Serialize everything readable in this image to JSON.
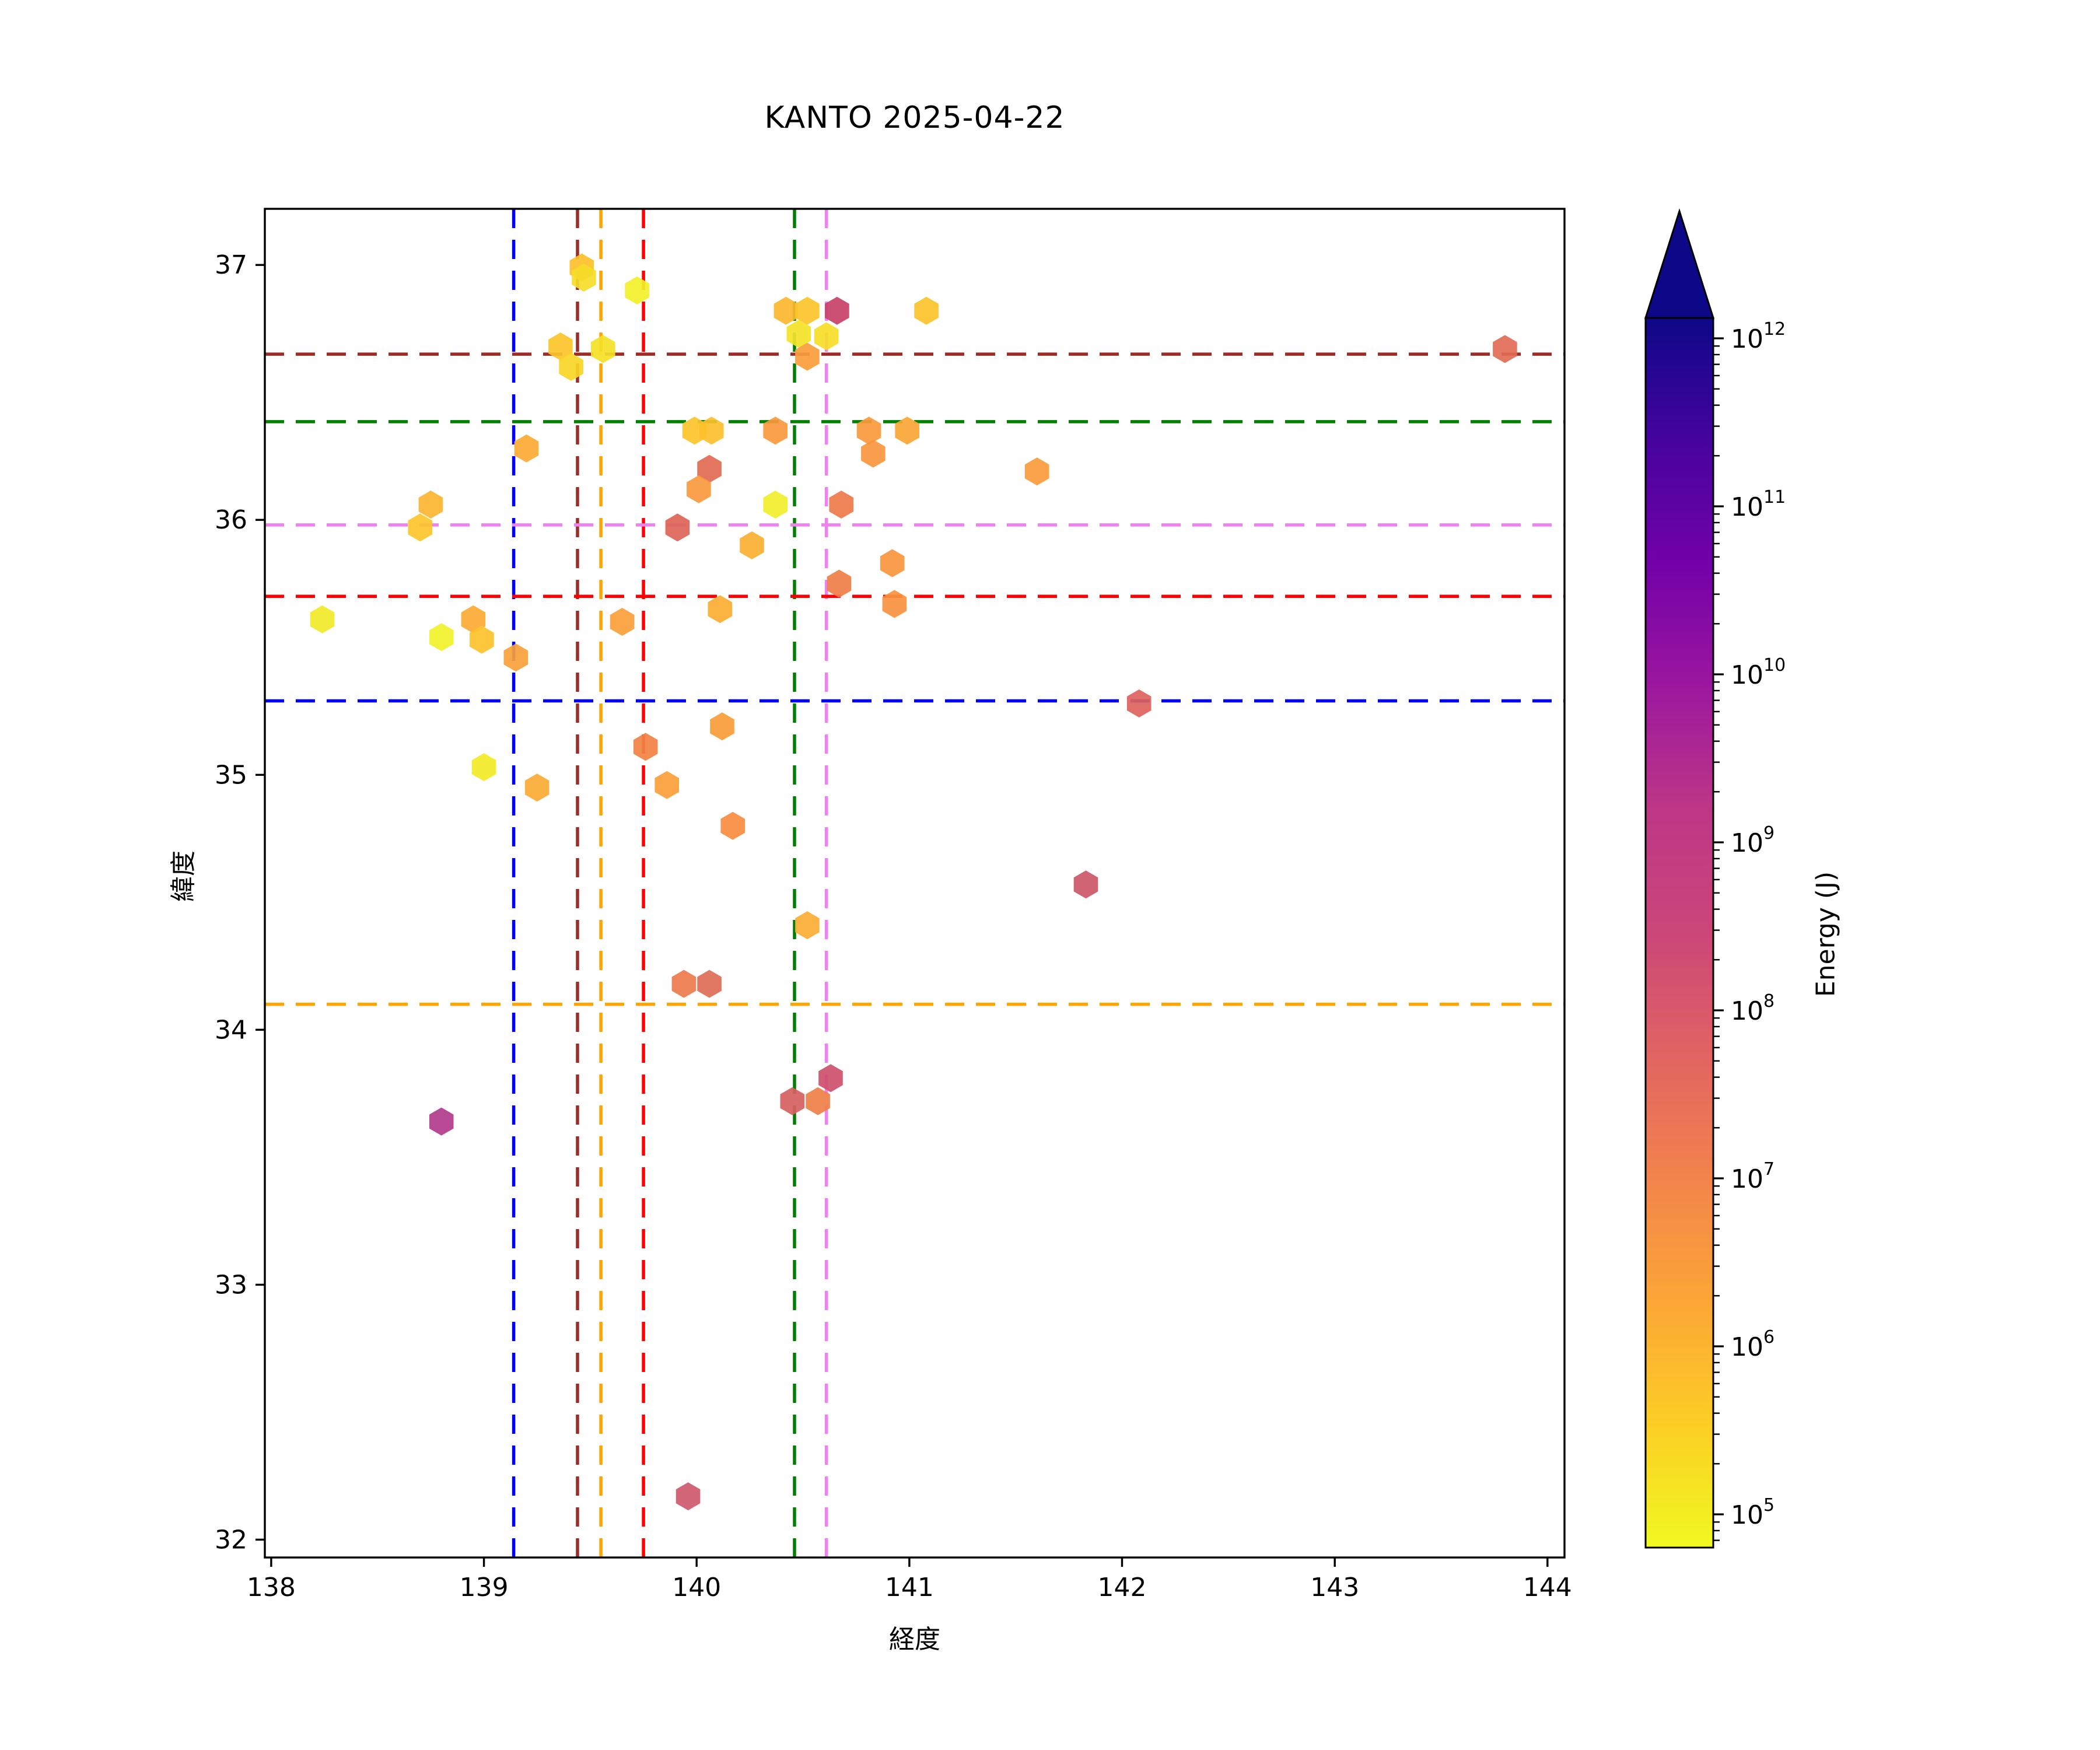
{
  "chart_data": {
    "type": "scatter",
    "title": "KANTO 2025-04-22",
    "xlabel": "経度",
    "ylabel": "緯度",
    "marker": "hexagon",
    "grid": false,
    "axes": {
      "xlim": [
        137.97,
        144.08
      ],
      "ylim": [
        31.93,
        37.22
      ],
      "xticks": [
        138,
        139,
        140,
        141,
        142,
        143,
        144
      ],
      "yticks": [
        32,
        33,
        34,
        35,
        36,
        37
      ]
    },
    "points": [
      {
        "lon": 139.46,
        "lat": 36.99,
        "energy_j": 1100000.0,
        "color": "#fcc02b"
      },
      {
        "lon": 139.47,
        "lat": 36.95,
        "energy_j": 250000.0,
        "color": "#f5dd28"
      },
      {
        "lon": 139.72,
        "lat": 36.9,
        "energy_j": 100000.0,
        "color": "#f2f028"
      },
      {
        "lon": 139.36,
        "lat": 36.68,
        "energy_j": 900000.0,
        "color": "#fcc42a"
      },
      {
        "lon": 139.41,
        "lat": 36.6,
        "energy_j": 300000.0,
        "color": "#f8d626"
      },
      {
        "lon": 139.56,
        "lat": 36.67,
        "energy_j": 200000.0,
        "color": "#f4e127"
      },
      {
        "lon": 140.42,
        "lat": 36.82,
        "energy_j": 1800000.0,
        "color": "#fcb62e"
      },
      {
        "lon": 140.52,
        "lat": 36.82,
        "energy_j": 1000000.0,
        "color": "#fcc32b"
      },
      {
        "lon": 140.48,
        "lat": 36.73,
        "energy_j": 180000.0,
        "color": "#f3e327"
      },
      {
        "lon": 140.61,
        "lat": 36.72,
        "energy_j": 220000.0,
        "color": "#f6dd27"
      },
      {
        "lon": 140.66,
        "lat": 36.82,
        "energy_j": 900000000.0,
        "color": "#c84168"
      },
      {
        "lon": 140.52,
        "lat": 36.64,
        "energy_j": 8000000.0,
        "color": "#fa9d3b"
      },
      {
        "lon": 141.08,
        "lat": 36.82,
        "energy_j": 1000000.0,
        "color": "#fcc32a"
      },
      {
        "lon": 143.8,
        "lat": 36.67,
        "energy_j": 110000000.0,
        "color": "#e26d55"
      },
      {
        "lon": 139.99,
        "lat": 36.35,
        "energy_j": 900000.0,
        "color": "#fcc42b"
      },
      {
        "lon": 140.07,
        "lat": 36.35,
        "energy_j": 1200000.0,
        "color": "#fcc02c"
      },
      {
        "lon": 140.37,
        "lat": 36.35,
        "energy_j": 9000000.0,
        "color": "#f9993d"
      },
      {
        "lon": 140.81,
        "lat": 36.35,
        "energy_j": 8000000.0,
        "color": "#fa9a3c"
      },
      {
        "lon": 140.83,
        "lat": 36.26,
        "energy_j": 11000000.0,
        "color": "#f9963d"
      },
      {
        "lon": 140.99,
        "lat": 36.35,
        "energy_j": 4000000.0,
        "color": "#fba635"
      },
      {
        "lon": 139.2,
        "lat": 36.28,
        "energy_j": 3500000.0,
        "color": "#fbaa33"
      },
      {
        "lon": 140.06,
        "lat": 36.2,
        "energy_j": 140000000.0,
        "color": "#e06a52"
      },
      {
        "lon": 140.01,
        "lat": 36.12,
        "energy_j": 9000000.0,
        "color": "#f9993d"
      },
      {
        "lon": 140.37,
        "lat": 36.06,
        "energy_j": 120000.0,
        "color": "#f1ef2b"
      },
      {
        "lon": 140.68,
        "lat": 36.06,
        "energy_j": 60000000.0,
        "color": "#ee7b49"
      },
      {
        "lon": 139.91,
        "lat": 35.97,
        "energy_j": 220000000.0,
        "color": "#dd6457"
      },
      {
        "lon": 140.26,
        "lat": 35.9,
        "energy_j": 2500000.0,
        "color": "#fbb031"
      },
      {
        "lon": 140.92,
        "lat": 35.83,
        "energy_j": 11000000.0,
        "color": "#f9963d"
      },
      {
        "lon": 140.67,
        "lat": 35.75,
        "energy_j": 50000000.0,
        "color": "#ef7e46"
      },
      {
        "lon": 140.93,
        "lat": 35.67,
        "energy_j": 15000000.0,
        "color": "#f8923f"
      },
      {
        "lon": 140.11,
        "lat": 35.65,
        "energy_j": 2800000.0,
        "color": "#fbae32"
      },
      {
        "lon": 138.75,
        "lat": 36.06,
        "energy_j": 2200000.0,
        "color": "#fbb430"
      },
      {
        "lon": 138.7,
        "lat": 35.97,
        "energy_j": 850000.0,
        "color": "#fcc52b"
      },
      {
        "lon": 138.24,
        "lat": 35.61,
        "energy_j": 140000.0,
        "color": "#f2e928"
      },
      {
        "lon": 138.8,
        "lat": 35.54,
        "energy_j": 100000.0,
        "color": "#f0f128"
      },
      {
        "lon": 138.95,
        "lat": 35.61,
        "energy_j": 3200000.0,
        "color": "#fbaa34"
      },
      {
        "lon": 138.99,
        "lat": 35.53,
        "energy_j": 1000000.0,
        "color": "#fcc22b"
      },
      {
        "lon": 139.15,
        "lat": 35.46,
        "energy_j": 6500000.0,
        "color": "#f9a139"
      },
      {
        "lon": 139.65,
        "lat": 35.6,
        "energy_j": 7000000.0,
        "color": "#f9a03a"
      },
      {
        "lon": 141.6,
        "lat": 36.19,
        "energy_j": 8500000.0,
        "color": "#fa9b3b"
      },
      {
        "lon": 142.08,
        "lat": 35.28,
        "energy_j": 230000000.0,
        "color": "#dc635b"
      },
      {
        "lon": 141.83,
        "lat": 34.57,
        "energy_j": 550000000.0,
        "color": "#cc5668"
      },
      {
        "lon": 139.0,
        "lat": 35.03,
        "energy_j": 130000.0,
        "color": "#f3eb27"
      },
      {
        "lon": 139.25,
        "lat": 34.95,
        "energy_j": 3000000.0,
        "color": "#fbab34"
      },
      {
        "lon": 139.76,
        "lat": 35.11,
        "energy_j": 35000000.0,
        "color": "#f18243"
      },
      {
        "lon": 140.12,
        "lat": 35.19,
        "energy_j": 8000000.0,
        "color": "#fa9c3b"
      },
      {
        "lon": 139.86,
        "lat": 34.96,
        "energy_j": 7500000.0,
        "color": "#fa9e3a"
      },
      {
        "lon": 140.17,
        "lat": 34.8,
        "energy_j": 20000000.0,
        "color": "#f78c40"
      },
      {
        "lon": 140.52,
        "lat": 34.41,
        "energy_j": 3000000.0,
        "color": "#fbac33"
      },
      {
        "lon": 139.94,
        "lat": 34.18,
        "energy_j": 65000000.0,
        "color": "#ec794c"
      },
      {
        "lon": 140.06,
        "lat": 34.18,
        "energy_j": 160000000.0,
        "color": "#de6c54"
      },
      {
        "lon": 138.8,
        "lat": 33.64,
        "energy_j": 7000000000.0,
        "color": "#b23a8c"
      },
      {
        "lon": 140.45,
        "lat": 33.72,
        "energy_j": 300000000.0,
        "color": "#d65f61"
      },
      {
        "lon": 140.63,
        "lat": 33.81,
        "energy_j": 650000000.0,
        "color": "#cd506c"
      },
      {
        "lon": 140.57,
        "lat": 33.72,
        "energy_j": 50000000.0,
        "color": "#ee8048"
      },
      {
        "lon": 139.96,
        "lat": 32.17,
        "energy_j": 450000000.0,
        "color": "#cd596e"
      }
    ],
    "reference_lines": {
      "vertical": [
        {
          "color_name": "blue",
          "color": "#0000ff",
          "lon": 139.14
        },
        {
          "color_name": "darkred",
          "color": "#9e2b25",
          "lon": 139.44
        },
        {
          "color_name": "orange",
          "color": "#ffa500",
          "lon": 139.55
        },
        {
          "color_name": "red",
          "color": "#ff0000",
          "lon": 139.75
        },
        {
          "color_name": "green",
          "color": "#008000",
          "lon": 140.46
        },
        {
          "color_name": "violet",
          "color": "#ee82ee",
          "lon": 140.61
        }
      ],
      "horizontal": [
        {
          "color_name": "darkred",
          "color": "#9e2b25",
          "lat": 36.65
        },
        {
          "color_name": "green",
          "color": "#008000",
          "lat": 36.385
        },
        {
          "color_name": "violet",
          "color": "#ee82ee",
          "lat": 35.98
        },
        {
          "color_name": "red",
          "color": "#ff0000",
          "lat": 35.7
        },
        {
          "color_name": "blue",
          "color": "#0000ff",
          "lat": 35.29
        },
        {
          "color_name": "orange",
          "color": "#ffa500",
          "lat": 34.1
        }
      ]
    }
  },
  "colorbar": {
    "label": "Energy (J)",
    "scale": "log",
    "tick_exponents": [
      12,
      11,
      10,
      9,
      8,
      7,
      6,
      5
    ],
    "tick_base": "10",
    "extend": "max",
    "arrow_color": "#0d0887",
    "gradient_bottom_to_top": [
      "#f0f921",
      "#fcce25",
      "#fca636",
      "#f2844b",
      "#e16462",
      "#cb4679",
      "#bd3786",
      "#9c179e",
      "#7201a8",
      "#46039f",
      "#0d0887"
    ]
  }
}
